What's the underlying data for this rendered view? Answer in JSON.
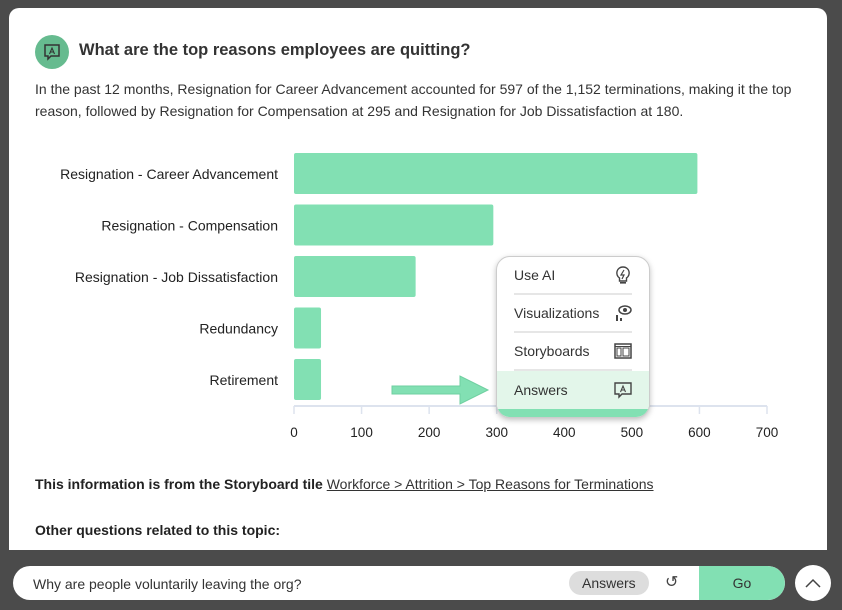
{
  "question": "What are the top reasons employees are quitting?",
  "summary": "In the past 12 months, Resignation for Career Advancement accounted for 597 of the 1,152 terminations, making it the top reason, followed by Resignation for Compensation at 295 and Resignation for Job Dissatisfaction at 180.",
  "chart_data": {
    "type": "bar",
    "orientation": "horizontal",
    "categories": [
      "Resignation - Career Advancement",
      "Resignation - Compensation",
      "Resignation - Job Dissatisfaction",
      "Redundancy",
      "Retirement"
    ],
    "values": [
      597,
      295,
      180,
      40,
      40
    ],
    "xticks": [
      "0",
      "100",
      "200",
      "300",
      "400",
      "500",
      "600",
      "700"
    ],
    "xlim": [
      0,
      700
    ],
    "color": "#82e0b3"
  },
  "source": {
    "prefix": "This information is from the Storyboard tile",
    "link": "Workforce > Attrition > Top Reasons for Terminations"
  },
  "other_heading": "Other questions related to this topic:",
  "menu": [
    {
      "label": "Use AI",
      "icon": "lightbulb-icon"
    },
    {
      "label": "Visualizations",
      "icon": "visualization-icon"
    },
    {
      "label": "Storyboards",
      "icon": "storyboard-icon"
    },
    {
      "label": "Answers",
      "icon": "answers-icon"
    }
  ],
  "input": {
    "value": "Why are people voluntarily leaving the org?"
  },
  "mode_chip": "Answers",
  "go_label": "Go"
}
